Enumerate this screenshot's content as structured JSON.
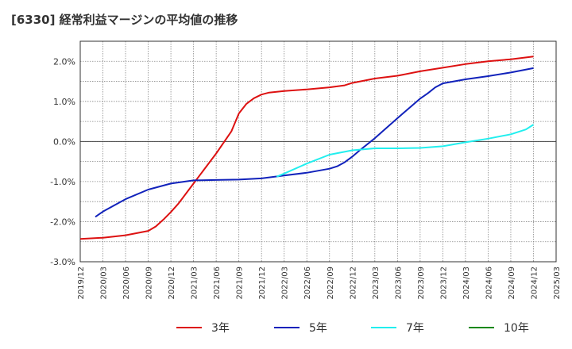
{
  "title": "[6330]  経常利益マージンの平均値の推移",
  "chart_data": {
    "type": "line",
    "title": "[6330]  経常利益マージンの平均値の推移",
    "xlabel": "",
    "ylabel": "",
    "ylim": [
      -3.0,
      2.5
    ],
    "yticks": [
      2.0,
      1.0,
      0.0,
      -1.0,
      -2.0,
      -3.0
    ],
    "ytick_labels": [
      "2.0%",
      "1.0%",
      "0.0%",
      "-1.0%",
      "-2.0%",
      "-3.0%"
    ],
    "xtick_labels": [
      "2019/12",
      "2020/03",
      "2020/06",
      "2020/09",
      "2020/12",
      "2021/03",
      "2021/06",
      "2021/09",
      "2021/12",
      "2022/03",
      "2022/06",
      "2022/09",
      "2022/12",
      "2023/03",
      "2023/06",
      "2023/09",
      "2023/12",
      "2024/03",
      "2024/06",
      "2024/09",
      "2024/12",
      "2025/03"
    ],
    "grid": true,
    "legend_position": "bottom",
    "series": [
      {
        "name": "3年",
        "color": "#dd1111",
        "points": [
          [
            "2019/12",
            -2.43
          ],
          [
            "2020/03",
            -2.4
          ],
          [
            "2020/06",
            -2.34
          ],
          [
            "2020/09",
            -2.23
          ],
          [
            "2020/10",
            -2.12
          ],
          [
            "2020/11",
            -1.95
          ],
          [
            "2020/12",
            -1.76
          ],
          [
            "2021/01",
            -1.55
          ],
          [
            "2021/03",
            -1.05
          ],
          [
            "2021/06",
            -0.3
          ],
          [
            "2021/08",
            0.25
          ],
          [
            "2021/09",
            0.7
          ],
          [
            "2021/10",
            0.94
          ],
          [
            "2021/11",
            1.08
          ],
          [
            "2021/12",
            1.17
          ],
          [
            "2022/01",
            1.22
          ],
          [
            "2022/03",
            1.26
          ],
          [
            "2022/06",
            1.3
          ],
          [
            "2022/09",
            1.35
          ],
          [
            "2022/11",
            1.4
          ],
          [
            "2022/12",
            1.46
          ],
          [
            "2023/03",
            1.57
          ],
          [
            "2023/06",
            1.64
          ],
          [
            "2023/09",
            1.75
          ],
          [
            "2023/12",
            1.84
          ],
          [
            "2024/03",
            1.93
          ],
          [
            "2024/06",
            2.0
          ],
          [
            "2024/09",
            2.05
          ],
          [
            "2024/12",
            2.12
          ]
        ]
      },
      {
        "name": "5年",
        "color": "#1122bb",
        "points": [
          [
            "2020/02",
            -1.88
          ],
          [
            "2020/03",
            -1.75
          ],
          [
            "2020/06",
            -1.44
          ],
          [
            "2020/09",
            -1.2
          ],
          [
            "2020/12",
            -1.05
          ],
          [
            "2021/03",
            -0.97
          ],
          [
            "2021/06",
            -0.96
          ],
          [
            "2021/09",
            -0.95
          ],
          [
            "2021/12",
            -0.92
          ],
          [
            "2022/03",
            -0.85
          ],
          [
            "2022/06",
            -0.78
          ],
          [
            "2022/09",
            -0.68
          ],
          [
            "2022/10",
            -0.62
          ],
          [
            "2022/11",
            -0.52
          ],
          [
            "2022/12",
            -0.38
          ],
          [
            "2023/01",
            -0.22
          ],
          [
            "2023/03",
            0.08
          ],
          [
            "2023/06",
            0.58
          ],
          [
            "2023/09",
            1.07
          ],
          [
            "2023/10",
            1.2
          ],
          [
            "2023/11",
            1.35
          ],
          [
            "2023/12",
            1.45
          ],
          [
            "2024/03",
            1.55
          ],
          [
            "2024/06",
            1.63
          ],
          [
            "2024/09",
            1.72
          ],
          [
            "2024/12",
            1.83
          ]
        ]
      },
      {
        "name": "7年",
        "color": "#22eeee",
        "points": [
          [
            "2022/02",
            -0.88
          ],
          [
            "2022/03",
            -0.8
          ],
          [
            "2022/06",
            -0.55
          ],
          [
            "2022/09",
            -0.33
          ],
          [
            "2022/12",
            -0.22
          ],
          [
            "2023/03",
            -0.17
          ],
          [
            "2023/06",
            -0.17
          ],
          [
            "2023/09",
            -0.16
          ],
          [
            "2023/12",
            -0.12
          ],
          [
            "2024/03",
            -0.02
          ],
          [
            "2024/06",
            0.07
          ],
          [
            "2024/09",
            0.18
          ],
          [
            "2024/11",
            0.3
          ],
          [
            "2024/12",
            0.42
          ]
        ]
      },
      {
        "name": "10年",
        "color": "#118811",
        "points": []
      }
    ]
  }
}
